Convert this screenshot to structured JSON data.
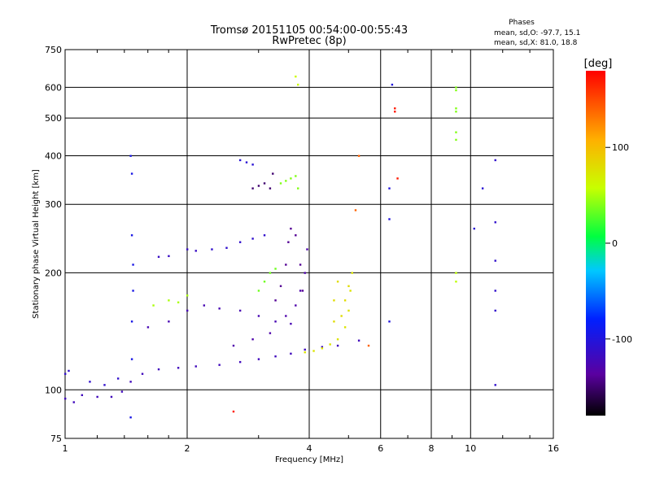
{
  "chart_data": {
    "type": "scatter",
    "title": "Tromsø 20151105 00:54:00-00:55:43",
    "subtitle": "RwPretec (8p)",
    "xlabel": "Frequency [MHz]",
    "ylabel": "Stationary phase Virtual Height [km]",
    "x_scale": "log",
    "y_scale": "log",
    "xlim": [
      1,
      16
    ],
    "ylim": [
      75,
      750
    ],
    "x_ticks": [
      1,
      2,
      4,
      6,
      8,
      10,
      16
    ],
    "y_ticks": [
      75,
      100,
      200,
      300,
      400,
      500,
      600,
      750
    ],
    "grid": true,
    "stats": {
      "heading": "Phases",
      "line_o": "mean, sd,O: -97.7, 15.1",
      "line_x": "mean, sd,X:  81.0, 18.8"
    },
    "colorbar": {
      "label": "[deg]",
      "range": [
        -180,
        180
      ],
      "ticks": [
        100,
        0,
        -100
      ]
    },
    "series": [
      {
        "points": [
          [
            1.0,
            95
          ],
          [
            1.05,
            93
          ],
          [
            1.1,
            97
          ],
          [
            1.2,
            96
          ],
          [
            1.3,
            96
          ],
          [
            1.38,
            99
          ],
          [
            1.45,
            105
          ],
          [
            1.55,
            110
          ],
          [
            1.7,
            113
          ],
          [
            1.9,
            114
          ],
          [
            2.1,
            115
          ],
          [
            2.4,
            116
          ],
          [
            2.7,
            118
          ],
          [
            3.0,
            120
          ],
          [
            3.3,
            122
          ],
          [
            3.6,
            124
          ],
          [
            3.9,
            127
          ],
          [
            4.3,
            129
          ],
          [
            4.7,
            130
          ],
          [
            5.3,
            134
          ]
        ],
        "phase": -120
      },
      {
        "points": [
          [
            1.0,
            110
          ],
          [
            1.02,
            112
          ],
          [
            1.15,
            105
          ],
          [
            1.25,
            103
          ],
          [
            1.35,
            107
          ]
        ],
        "phase": -110
      },
      {
        "points": [
          [
            1.45,
            400
          ],
          [
            1.46,
            360
          ],
          [
            1.46,
            250
          ],
          [
            1.47,
            210
          ],
          [
            1.47,
            180
          ],
          [
            1.46,
            150
          ],
          [
            1.46,
            120
          ],
          [
            1.45,
            85
          ]
        ],
        "phase": -95
      },
      {
        "points": [
          [
            1.65,
            165
          ],
          [
            1.8,
            170
          ],
          [
            1.9,
            168
          ],
          [
            2.0,
            175
          ]
        ],
        "phase": 50
      },
      {
        "points": [
          [
            2.3,
            230
          ],
          [
            2.5,
            232
          ],
          [
            2.7,
            240
          ],
          [
            2.9,
            245
          ],
          [
            3.1,
            250
          ]
        ],
        "phase": -110
      },
      {
        "points": [
          [
            1.7,
            220
          ],
          [
            1.8,
            221
          ],
          [
            2.0,
            230
          ],
          [
            2.1,
            228
          ]
        ],
        "phase": -115
      },
      {
        "points": [
          [
            1.6,
            145
          ],
          [
            1.8,
            150
          ],
          [
            2.0,
            160
          ],
          [
            2.2,
            165
          ],
          [
            2.4,
            162
          ],
          [
            2.7,
            160
          ],
          [
            3.0,
            155
          ],
          [
            3.3,
            150
          ],
          [
            3.6,
            148
          ]
        ],
        "phase": -125
      },
      {
        "points": [
          [
            2.6,
            130
          ],
          [
            2.9,
            135
          ],
          [
            3.2,
            140
          ],
          [
            3.5,
            155
          ],
          [
            3.7,
            165
          ],
          [
            3.8,
            180
          ],
          [
            3.9,
            200
          ],
          [
            3.95,
            230
          ]
        ],
        "phase": -130
      },
      {
        "points": [
          [
            3.3,
            170
          ],
          [
            3.4,
            185
          ],
          [
            3.5,
            210
          ],
          [
            3.55,
            240
          ],
          [
            3.6,
            260
          ],
          [
            3.7,
            250
          ],
          [
            3.8,
            210
          ],
          [
            3.85,
            180
          ]
        ],
        "phase": -140
      },
      {
        "points": [
          [
            3.0,
            180
          ],
          [
            3.1,
            190
          ],
          [
            3.2,
            200
          ],
          [
            3.3,
            205
          ]
        ],
        "phase": 35
      },
      {
        "points": [
          [
            3.9,
            125
          ],
          [
            4.1,
            126
          ],
          [
            4.3,
            128
          ],
          [
            4.5,
            131
          ],
          [
            4.7,
            135
          ],
          [
            4.9,
            145
          ],
          [
            5.0,
            160
          ],
          [
            5.05,
            180
          ],
          [
            5.1,
            200
          ]
        ],
        "phase": 75
      },
      {
        "points": [
          [
            4.6,
            150
          ],
          [
            4.8,
            155
          ],
          [
            4.9,
            170
          ],
          [
            5.0,
            185
          ],
          [
            4.7,
            190
          ],
          [
            4.6,
            170
          ]
        ],
        "phase": 80
      },
      {
        "points": [
          [
            2.9,
            330
          ],
          [
            3.0,
            335
          ],
          [
            3.1,
            340
          ],
          [
            3.2,
            330
          ],
          [
            3.25,
            360
          ]
        ],
        "phase": -150
      },
      {
        "points": [
          [
            3.4,
            340
          ],
          [
            3.5,
            345
          ],
          [
            3.6,
            350
          ],
          [
            3.7,
            355
          ],
          [
            3.75,
            330
          ]
        ],
        "phase": 40
      },
      {
        "points": [
          [
            2.7,
            390
          ],
          [
            2.8,
            385
          ],
          [
            2.9,
            380
          ]
        ],
        "phase": -105
      },
      {
        "points": [
          [
            3.7,
            640
          ],
          [
            3.75,
            610
          ]
        ],
        "phase": 60
      },
      {
        "points": [
          [
            6.3,
            150
          ],
          [
            6.3,
            330
          ],
          [
            6.3,
            275
          ]
        ],
        "phase": -100
      },
      {
        "points": [
          [
            6.4,
            610
          ]
        ],
        "phase": -100
      },
      {
        "points": [
          [
            6.5,
            520
          ],
          [
            6.5,
            530
          ],
          [
            6.6,
            350
          ]
        ],
        "phase": 170
      },
      {
        "points": [
          [
            9.2,
            600
          ],
          [
            9.2,
            590
          ],
          [
            9.2,
            530
          ],
          [
            9.2,
            520
          ],
          [
            9.2,
            460
          ],
          [
            9.2,
            440
          ]
        ],
        "phase": 40
      },
      {
        "points": [
          [
            9.2,
            200
          ],
          [
            9.2,
            190
          ]
        ],
        "phase": 55
      },
      {
        "points": [
          [
            11.5,
            390
          ],
          [
            11.5,
            270
          ],
          [
            11.5,
            215
          ],
          [
            11.5,
            180
          ],
          [
            11.5,
            160
          ],
          [
            11.5,
            103
          ]
        ],
        "phase": -110
      },
      {
        "points": [
          [
            10.7,
            330
          ],
          [
            10.2,
            260
          ]
        ],
        "phase": -105
      },
      {
        "points": [
          [
            2.6,
            88
          ]
        ],
        "phase": 170
      },
      {
        "points": [
          [
            5.3,
            400
          ],
          [
            5.2,
            290
          ],
          [
            5.6,
            130
          ]
        ],
        "phase": 140
      }
    ]
  }
}
